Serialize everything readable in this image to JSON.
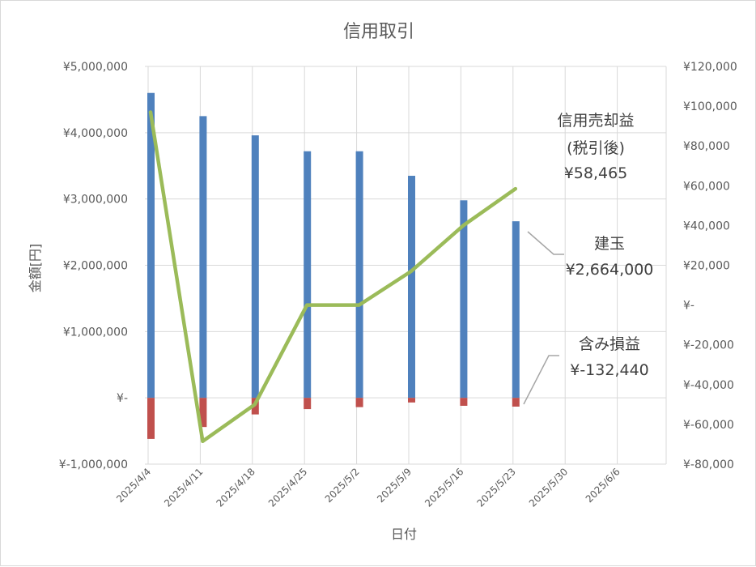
{
  "chart_data": {
    "type": "bar",
    "title": "信用取引",
    "xlabel": "日付",
    "ylabel": "金額[円]",
    "categories": [
      "2025/4/4",
      "2025/4/11",
      "2025/4/18",
      "2025/4/25",
      "2025/5/2",
      "2025/5/9",
      "2025/5/16",
      "2025/5/23",
      "2025/5/30",
      "2025/6/6"
    ],
    "y_left": {
      "ylim": [
        -1000000,
        5000000
      ],
      "ticks": [
        -1000000,
        0,
        1000000,
        2000000,
        3000000,
        4000000,
        5000000
      ],
      "tick_labels": [
        "¥-1,000,000",
        "¥-",
        "¥1,000,000",
        "¥2,000,000",
        "¥3,000,000",
        "¥4,000,000",
        "¥5,000,000"
      ]
    },
    "y_right": {
      "ylim": [
        -80000,
        120000
      ],
      "ticks": [
        -80000,
        -60000,
        -40000,
        -20000,
        0,
        20000,
        40000,
        60000,
        80000,
        100000,
        120000
      ],
      "tick_labels": [
        "¥-80,000",
        "¥-60,000",
        "¥-40,000",
        "¥-20,000",
        "¥-",
        "¥20,000",
        "¥40,000",
        "¥60,000",
        "¥80,000",
        "¥100,000",
        "¥120,000"
      ]
    },
    "series": [
      {
        "name": "建玉",
        "type": "bar",
        "axis": "left",
        "color": "#4f81bd",
        "values": [
          4600000,
          4250000,
          3960000,
          3720000,
          3720000,
          3350000,
          2980000,
          2664000,
          null,
          null
        ]
      },
      {
        "name": "含み損益",
        "type": "bar",
        "axis": "left",
        "color": "#c0504d",
        "values": [
          -620000,
          -440000,
          -250000,
          -170000,
          -140000,
          -70000,
          -120000,
          -132440,
          null,
          null
        ]
      },
      {
        "name": "信用売却益(税引後)",
        "type": "line",
        "axis": "right",
        "color": "#9bbb59",
        "values": [
          97000,
          -68500,
          -50000,
          0,
          0,
          17000,
          40000,
          58465,
          null,
          null
        ]
      }
    ],
    "grid": true,
    "legend": "none"
  },
  "callouts": {
    "sell_profit": {
      "line1": "信用売却益",
      "line2": "(税引後)",
      "value": "¥58,465"
    },
    "position": {
      "line1": "建玉",
      "value": "¥2,664,000"
    },
    "unrealized": {
      "line1": "含み損益",
      "value": "¥-132,440"
    }
  }
}
